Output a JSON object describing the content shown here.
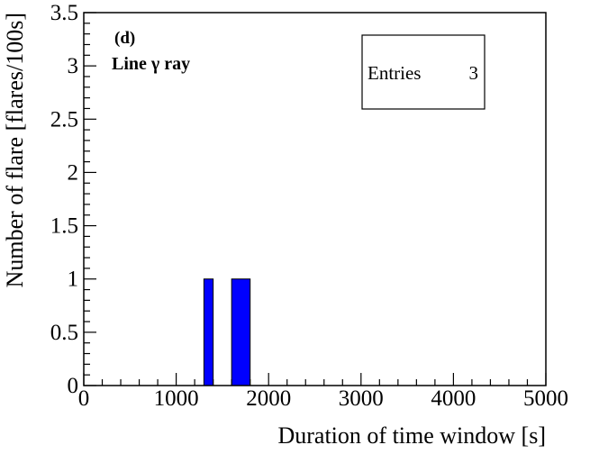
{
  "chart_data": {
    "type": "bar",
    "panel_label": "(d)",
    "panel_text": "Line γ ray",
    "xlabel": "Duration of time window [s]",
    "ylabel": "Number of flare [flares/100s]",
    "xlim": [
      0,
      5000
    ],
    "ylim": [
      0,
      3.5
    ],
    "x_ticks": [
      {
        "value": 0,
        "label": "0"
      },
      {
        "value": 1000,
        "label": "1000"
      },
      {
        "value": 2000,
        "label": "2000"
      },
      {
        "value": 3000,
        "label": "3000"
      },
      {
        "value": 4000,
        "label": "4000"
      },
      {
        "value": 5000,
        "label": "5000"
      }
    ],
    "y_ticks": [
      {
        "value": 0,
        "label": "0"
      },
      {
        "value": 0.5,
        "label": "0.5"
      },
      {
        "value": 1,
        "label": "1"
      },
      {
        "value": 1.5,
        "label": "1.5"
      },
      {
        "value": 2,
        "label": "2"
      },
      {
        "value": 2.5,
        "label": "2.5"
      },
      {
        "value": 3,
        "label": "3"
      },
      {
        "value": 3.5,
        "label": "3.5"
      }
    ],
    "bins": [
      {
        "x_start": 1300,
        "x_end": 1400,
        "value": 1
      },
      {
        "x_start": 1600,
        "x_end": 1800,
        "value": 1
      }
    ],
    "stats_box": {
      "label": "Entries",
      "value": "3"
    },
    "grid": false,
    "bar_color": "#0000ff",
    "axis_color": "#000000"
  }
}
